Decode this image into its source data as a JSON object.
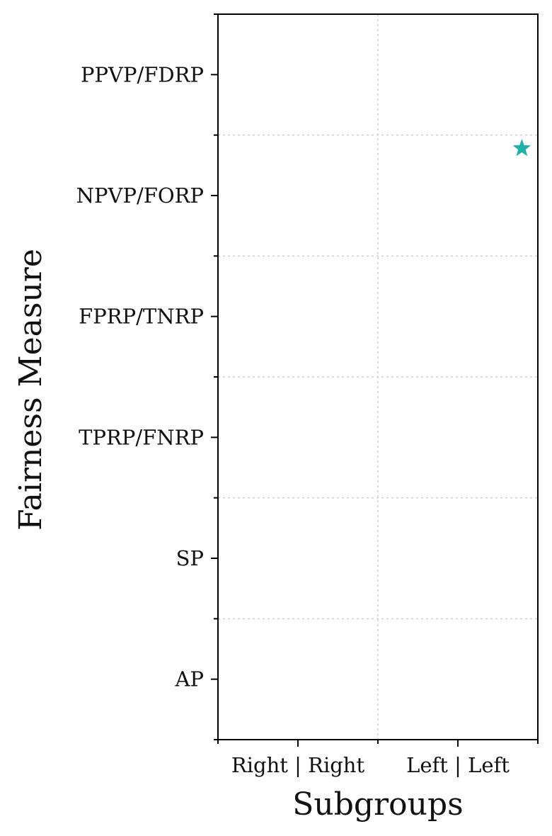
{
  "chart_data": {
    "type": "scatter",
    "xlabel": "Subgroups",
    "ylabel": "Fairness Measure",
    "x_categories": [
      "Right | Right",
      "Left | Left"
    ],
    "y_categories": [
      "AP",
      "SP",
      "TPRP/FNRP",
      "FPRP/TNRP",
      "NPVP/FORP",
      "PPVP/FDRP"
    ],
    "xlim": [
      -0.5,
      1.5
    ],
    "ylim": [
      -0.5,
      5.5
    ],
    "grid": true,
    "points": [
      {
        "x": 1.4,
        "y": 4.39,
        "marker": "star",
        "color": "#20b2aa"
      }
    ]
  }
}
